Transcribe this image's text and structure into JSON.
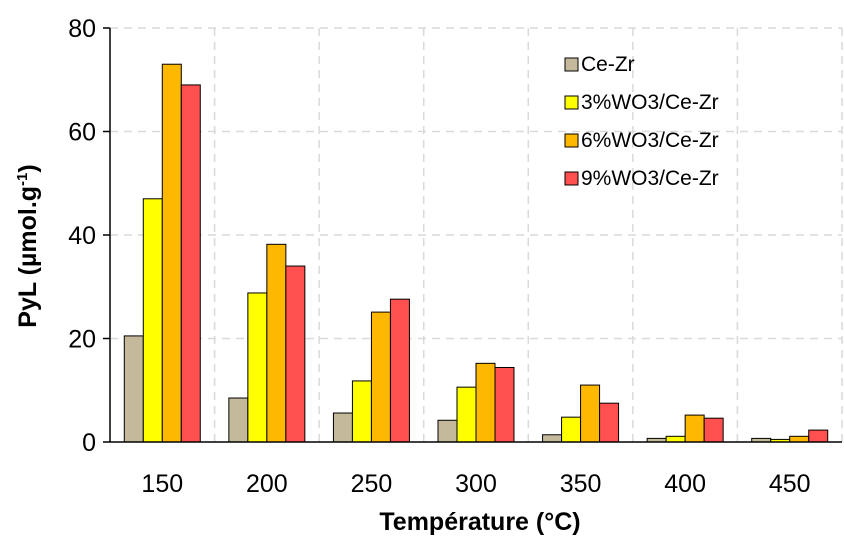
{
  "chart_data": {
    "type": "bar",
    "title": "",
    "xlabel": "Température (°C)",
    "ylabel": "PyL (µmol.g",
    "ylabel_sup": "-1",
    "ylabel_end": ")",
    "categories": [
      "150",
      "200",
      "250",
      "300",
      "350",
      "400",
      "450"
    ],
    "ylim": [
      0,
      80
    ],
    "yticks": [
      "0",
      "20",
      "40",
      "60",
      "80"
    ],
    "grid": true,
    "legend_position": "top-right",
    "series": [
      {
        "name": "Ce-Zr",
        "color": "#c4b99a",
        "values": [
          20.5,
          8.5,
          5.6,
          4.2,
          1.4,
          0.7,
          0.7
        ]
      },
      {
        "name": "3%WO3/Ce-Zr",
        "color": "#ffff00",
        "values": [
          47,
          28.8,
          11.8,
          10.6,
          4.8,
          1.1,
          0.5
        ]
      },
      {
        "name": "6%WO3/Ce-Zr",
        "color": "#ffb800",
        "values": [
          73,
          38.2,
          25.1,
          15.2,
          11,
          5.2,
          1.1
        ]
      },
      {
        "name": "9%WO3/Ce-Zr",
        "color": "#ff5050",
        "values": [
          69,
          34,
          27.6,
          14.4,
          7.5,
          4.6,
          2.3
        ]
      }
    ]
  }
}
